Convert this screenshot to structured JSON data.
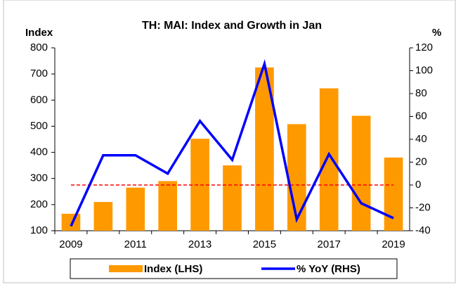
{
  "chart_data": {
    "type": "bar-line",
    "title": "TH: MAI: Index and Growth in Jan",
    "y_label": "Index",
    "y2_label": "%",
    "categories": [
      "2009",
      null,
      "2011",
      null,
      "2013",
      null,
      "2015",
      null,
      "2017",
      null,
      "2019"
    ],
    "series": [
      {
        "name": "Index (LHS)",
        "type": "bar",
        "color": "#ff9900",
        "values": [
          165,
          210,
          265,
          290,
          452,
          350,
          725,
          508,
          645,
          540,
          380
        ]
      },
      {
        "name": "% YoY (RHS)",
        "type": "line",
        "axis": "y2",
        "color": "#0000ff",
        "values": [
          -36,
          26,
          26,
          10,
          56,
          22,
          106,
          -30,
          27,
          -16,
          -29
        ]
      }
    ],
    "ylim": [
      100,
      800
    ],
    "yticks": [
      100,
      200,
      300,
      400,
      500,
      600,
      700,
      800
    ],
    "y2lim": [
      -40,
      120
    ],
    "y2ticks": [
      -40,
      -20,
      0,
      20,
      40,
      60,
      80,
      100,
      120
    ],
    "reference_line": {
      "axis": "y2",
      "value": 0,
      "color": "#ff0000"
    },
    "legend": "bottom"
  }
}
